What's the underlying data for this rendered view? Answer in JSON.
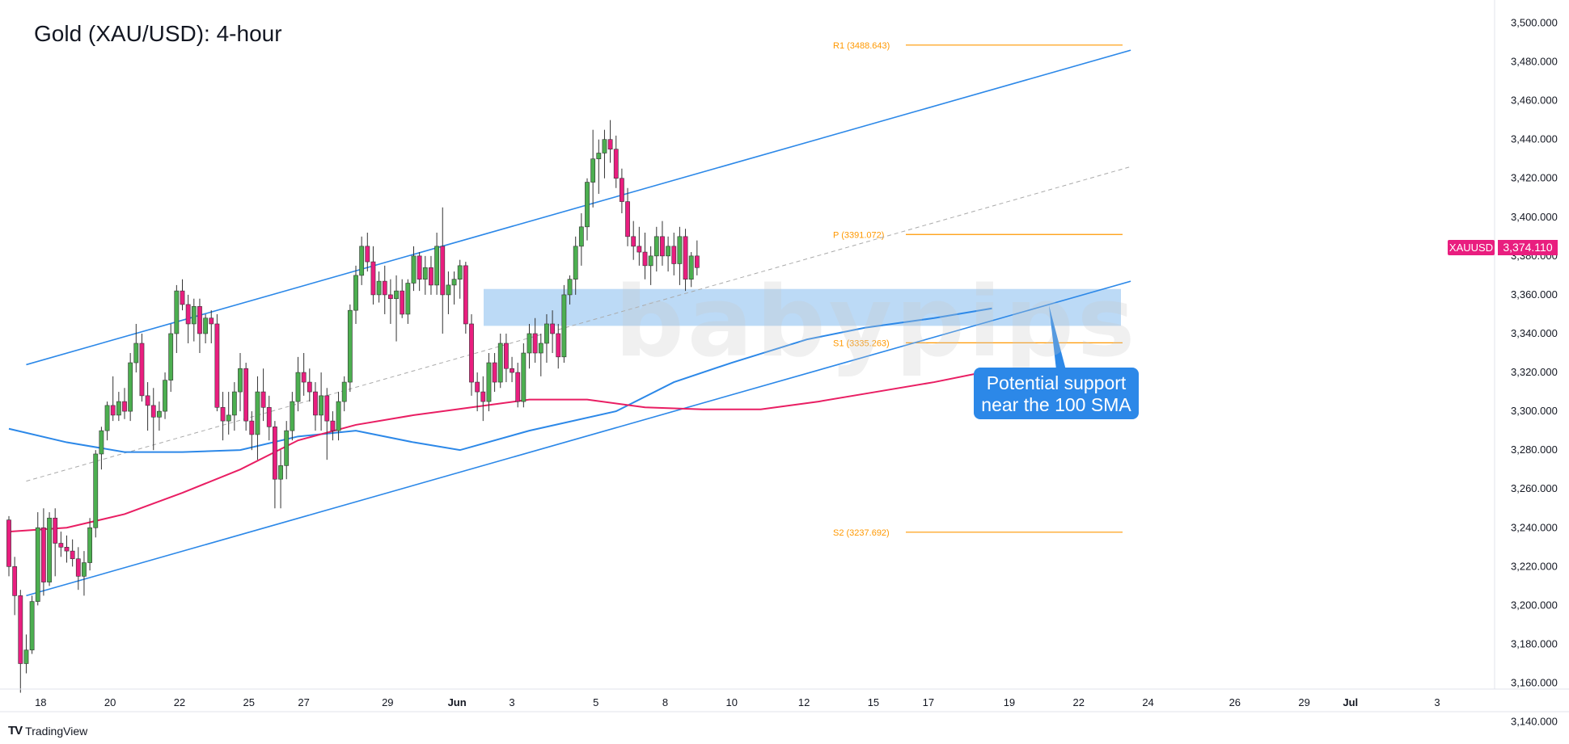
{
  "title": "Gold (XAU/USD): 4-hour",
  "watermark": "babypips",
  "branding": "TradingView",
  "symbol_tag": {
    "symbol": "XAUUSD",
    "price": "3,374.110"
  },
  "callout": {
    "line1": "Potential support",
    "line2": "near the 100 SMA"
  },
  "colors": {
    "up": "#4caf50",
    "down": "#e91e7f",
    "sma100": "#2c88e8",
    "sma200": "#e91e63",
    "channel": "#2c88e8",
    "pivot": "#ff9800",
    "zone": "#90c2f0"
  },
  "chart_data": {
    "type": "candlestick",
    "ylim": [
      3120,
      3510
    ],
    "y_ticks": [
      "3,500.000",
      "3,480.000",
      "3,460.000",
      "3,440.000",
      "3,420.000",
      "3,400.000",
      "3,380.000",
      "3,360.000",
      "3,340.000",
      "3,320.000",
      "3,300.000",
      "3,280.000",
      "3,260.000",
      "3,240.000",
      "3,220.000",
      "3,200.000",
      "3,180.000",
      "3,160.000",
      "3,140.000"
    ],
    "y_tick_values": [
      3500,
      3480,
      3460,
      3440,
      3420,
      3400,
      3380,
      3360,
      3340,
      3320,
      3300,
      3280,
      3260,
      3240,
      3220,
      3200,
      3180,
      3160,
      3140
    ],
    "x_ticks": [
      "18",
      "20",
      "22",
      "25",
      "27",
      "29",
      "Jun",
      "3",
      "5",
      "8",
      "10",
      "12",
      "15",
      "17",
      "19",
      "22",
      "24",
      "26",
      "29",
      "Jul",
      "3"
    ],
    "x_tick_index": [
      5.5,
      17.5,
      29.5,
      41.5,
      51,
      65.5,
      77.5,
      87,
      101.5,
      113.5,
      125,
      137.5,
      149.5,
      159,
      173,
      185,
      197,
      212,
      224,
      232,
      247
    ],
    "pivot_levels": [
      {
        "label": "R1 (3488.643)",
        "value": 3488.643
      },
      {
        "label": "P (3391.072)",
        "value": 3391.072
      },
      {
        "label": "S1 (3335.263)",
        "value": 3335.263
      },
      {
        "label": "S2 (3237.692)",
        "value": 3237.692
      }
    ],
    "support_zone": [
      3344,
      3363
    ],
    "channel": {
      "upper": [
        [
          3,
          3324
        ],
        [
          194,
          3486
        ]
      ],
      "lower": [
        [
          3,
          3205
        ],
        [
          194,
          3367
        ]
      ],
      "middle": [
        [
          3,
          3264
        ],
        [
          194,
          3426
        ]
      ]
    },
    "sma100": [
      [
        0,
        3291
      ],
      [
        10,
        3284
      ],
      [
        20,
        3279
      ],
      [
        30,
        3279
      ],
      [
        40,
        3280
      ],
      [
        50,
        3287
      ],
      [
        60,
        3290
      ],
      [
        70,
        3284
      ],
      [
        78,
        3280
      ],
      [
        90,
        3290
      ],
      [
        105,
        3300
      ],
      [
        115,
        3315
      ],
      [
        125,
        3325
      ],
      [
        138,
        3337
      ],
      [
        148,
        3343
      ],
      [
        160,
        3348
      ],
      [
        170,
        3353
      ]
    ],
    "sma200": [
      [
        0,
        3238
      ],
      [
        10,
        3240
      ],
      [
        20,
        3247
      ],
      [
        30,
        3258
      ],
      [
        40,
        3270
      ],
      [
        50,
        3285
      ],
      [
        60,
        3293
      ],
      [
        70,
        3298
      ],
      [
        80,
        3302
      ],
      [
        90,
        3306
      ],
      [
        100,
        3306
      ],
      [
        110,
        3302
      ],
      [
        120,
        3301
      ],
      [
        130,
        3301
      ],
      [
        140,
        3305
      ],
      [
        150,
        3310
      ],
      [
        160,
        3315
      ],
      [
        170,
        3321
      ]
    ],
    "candles": [
      [
        3244,
        3246,
        3215,
        3220
      ],
      [
        3220,
        3225,
        3195,
        3205
      ],
      [
        3205,
        3208,
        3155,
        3170
      ],
      [
        3170,
        3185,
        3165,
        3177
      ],
      [
        3177,
        3205,
        3175,
        3202
      ],
      [
        3202,
        3248,
        3200,
        3240
      ],
      [
        3240,
        3250,
        3205,
        3212
      ],
      [
        3212,
        3248,
        3210,
        3245
      ],
      [
        3245,
        3250,
        3215,
        3232
      ],
      [
        3232,
        3238,
        3225,
        3230
      ],
      [
        3230,
        3236,
        3222,
        3228
      ],
      [
        3228,
        3234,
        3220,
        3224
      ],
      [
        3224,
        3230,
        3208,
        3215
      ],
      [
        3215,
        3228,
        3205,
        3222
      ],
      [
        3222,
        3245,
        3218,
        3240
      ],
      [
        3240,
        3280,
        3235,
        3278
      ],
      [
        3278,
        3292,
        3270,
        3290
      ],
      [
        3290,
        3305,
        3285,
        3303
      ],
      [
        3303,
        3318,
        3295,
        3298
      ],
      [
        3298,
        3310,
        3295,
        3305
      ],
      [
        3305,
        3312,
        3296,
        3300
      ],
      [
        3300,
        3330,
        3295,
        3325
      ],
      [
        3325,
        3345,
        3320,
        3335
      ],
      [
        3335,
        3340,
        3305,
        3308
      ],
      [
        3308,
        3315,
        3290,
        3303
      ],
      [
        3303,
        3312,
        3280,
        3297
      ],
      [
        3297,
        3305,
        3290,
        3300
      ],
      [
        3300,
        3320,
        3296,
        3316
      ],
      [
        3316,
        3345,
        3310,
        3340
      ],
      [
        3340,
        3365,
        3330,
        3362
      ],
      [
        3362,
        3368,
        3352,
        3355
      ],
      [
        3355,
        3360,
        3335,
        3345
      ],
      [
        3345,
        3358,
        3336,
        3354
      ],
      [
        3354,
        3358,
        3330,
        3340
      ],
      [
        3340,
        3350,
        3335,
        3348
      ],
      [
        3348,
        3352,
        3335,
        3345
      ],
      [
        3345,
        3350,
        3300,
        3302
      ],
      [
        3302,
        3310,
        3285,
        3295
      ],
      [
        3295,
        3310,
        3288,
        3298
      ],
      [
        3298,
        3315,
        3290,
        3310
      ],
      [
        3310,
        3330,
        3300,
        3322
      ],
      [
        3322,
        3325,
        3290,
        3295
      ],
      [
        3295,
        3300,
        3280,
        3288
      ],
      [
        3288,
        3318,
        3275,
        3310
      ],
      [
        3310,
        3322,
        3295,
        3302
      ],
      [
        3302,
        3308,
        3285,
        3292
      ],
      [
        3292,
        3295,
        3250,
        3265
      ],
      [
        3265,
        3280,
        3250,
        3272
      ],
      [
        3272,
        3295,
        3265,
        3290
      ],
      [
        3290,
        3310,
        3285,
        3305
      ],
      [
        3305,
        3328,
        3300,
        3320
      ],
      [
        3320,
        3330,
        3308,
        3315
      ],
      [
        3315,
        3322,
        3305,
        3310
      ],
      [
        3310,
        3315,
        3290,
        3298
      ],
      [
        3298,
        3320,
        3290,
        3308
      ],
      [
        3308,
        3312,
        3275,
        3295
      ],
      [
        3295,
        3300,
        3285,
        3290
      ],
      [
        3290,
        3310,
        3285,
        3305
      ],
      [
        3305,
        3318,
        3300,
        3315
      ],
      [
        3315,
        3355,
        3310,
        3352
      ],
      [
        3352,
        3375,
        3345,
        3370
      ],
      [
        3370,
        3390,
        3365,
        3385
      ],
      [
        3385,
        3392,
        3372,
        3377
      ],
      [
        3377,
        3385,
        3355,
        3360
      ],
      [
        3360,
        3372,
        3356,
        3367
      ],
      [
        3367,
        3375,
        3350,
        3360
      ],
      [
        3360,
        3368,
        3345,
        3358
      ],
      [
        3358,
        3370,
        3336,
        3362
      ],
      [
        3362,
        3368,
        3348,
        3350
      ],
      [
        3350,
        3368,
        3345,
        3366
      ],
      [
        3366,
        3385,
        3362,
        3380
      ],
      [
        3380,
        3382,
        3362,
        3368
      ],
      [
        3368,
        3380,
        3360,
        3374
      ],
      [
        3374,
        3380,
        3360,
        3365
      ],
      [
        3365,
        3392,
        3360,
        3385
      ],
      [
        3385,
        3405,
        3340,
        3360
      ],
      [
        3360,
        3372,
        3350,
        3365
      ],
      [
        3365,
        3372,
        3355,
        3368
      ],
      [
        3368,
        3378,
        3358,
        3375
      ],
      [
        3375,
        3377,
        3340,
        3345
      ],
      [
        3345,
        3350,
        3308,
        3315
      ],
      [
        3315,
        3320,
        3300,
        3310
      ],
      [
        3310,
        3318,
        3295,
        3305
      ],
      [
        3305,
        3330,
        3300,
        3325
      ],
      [
        3325,
        3330,
        3310,
        3315
      ],
      [
        3315,
        3340,
        3312,
        3335
      ],
      [
        3335,
        3340,
        3315,
        3322
      ],
      [
        3322,
        3328,
        3315,
        3320
      ],
      [
        3320,
        3325,
        3302,
        3305
      ],
      [
        3305,
        3335,
        3302,
        3330
      ],
      [
        3330,
        3345,
        3322,
        3340
      ],
      [
        3340,
        3348,
        3325,
        3330
      ],
      [
        3330,
        3340,
        3318,
        3335
      ],
      [
        3335,
        3350,
        3325,
        3345
      ],
      [
        3345,
        3352,
        3330,
        3340
      ],
      [
        3340,
        3345,
        3322,
        3328
      ],
      [
        3328,
        3365,
        3325,
        3360
      ],
      [
        3360,
        3370,
        3355,
        3368
      ],
      [
        3368,
        3390,
        3360,
        3385
      ],
      [
        3385,
        3402,
        3375,
        3395
      ],
      [
        3395,
        3420,
        3388,
        3418
      ],
      [
        3418,
        3445,
        3405,
        3430
      ],
      [
        3430,
        3440,
        3412,
        3433
      ],
      [
        3433,
        3445,
        3420,
        3440
      ],
      [
        3440,
        3450,
        3428,
        3435
      ],
      [
        3435,
        3442,
        3415,
        3420
      ],
      [
        3420,
        3425,
        3402,
        3408
      ],
      [
        3408,
        3415,
        3385,
        3390
      ],
      [
        3390,
        3398,
        3378,
        3385
      ],
      [
        3385,
        3395,
        3375,
        3382
      ],
      [
        3382,
        3392,
        3368,
        3375
      ],
      [
        3375,
        3385,
        3365,
        3380
      ],
      [
        3380,
        3395,
        3372,
        3390
      ],
      [
        3390,
        3398,
        3375,
        3380
      ],
      [
        3380,
        3390,
        3372,
        3385
      ],
      [
        3385,
        3392,
        3370,
        3376
      ],
      [
        3376,
        3395,
        3365,
        3390
      ],
      [
        3390,
        3394,
        3362,
        3368
      ],
      [
        3368,
        3382,
        3364,
        3380
      ],
      [
        3380,
        3388,
        3370,
        3374
      ]
    ]
  }
}
